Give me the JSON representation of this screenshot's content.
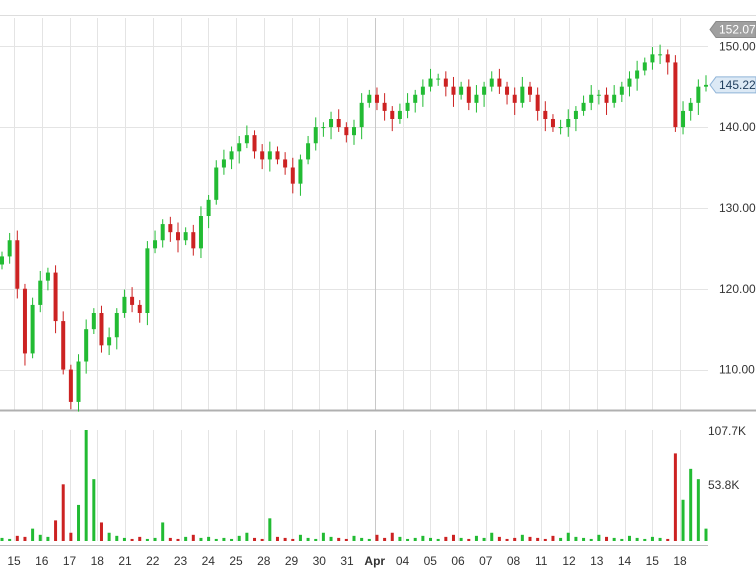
{
  "chart_data": [
    {
      "type": "candlestick",
      "title": "",
      "xlabel": "",
      "ylabel": "",
      "ylim": [
        105,
        153
      ],
      "y_ticks": [
        "150.00",
        "140.00",
        "130.00",
        "120.00",
        "110.00"
      ],
      "y_tick_values": [
        150,
        140,
        130,
        120,
        110
      ],
      "badges": [
        {
          "label": "152.07",
          "value": 152.07,
          "style": "gray"
        },
        {
          "label": "145.22",
          "value": 145.22,
          "style": "blue"
        }
      ],
      "x_labels": [
        "15",
        "16",
        "17",
        "18",
        "21",
        "22",
        "23",
        "24",
        "25",
        "28",
        "29",
        "30",
        "31",
        "Apr",
        "04",
        "05",
        "06",
        "07",
        "08",
        "11",
        "12",
        "13",
        "14",
        "15",
        "18"
      ],
      "closes": [
        124,
        126,
        120,
        112,
        118,
        121,
        122,
        116,
        110,
        106,
        111,
        115,
        117,
        113,
        114,
        117,
        119,
        118,
        117,
        125,
        126,
        128,
        127,
        126,
        127,
        125,
        129,
        131,
        135,
        136,
        137,
        138,
        139,
        137,
        136,
        137,
        136,
        135,
        133,
        136,
        138,
        140,
        140,
        141,
        140,
        139,
        140,
        143,
        144,
        143,
        142,
        141,
        142,
        143,
        144,
        145,
        146,
        146,
        145,
        144,
        145,
        143,
        144,
        145,
        146,
        145,
        144,
        143,
        145,
        144,
        142,
        141,
        140,
        140,
        141,
        142,
        143,
        144,
        144,
        143,
        144,
        145,
        146,
        147,
        148,
        149,
        149,
        148,
        140,
        142,
        143,
        145,
        145.22
      ],
      "volumes": [
        3,
        2,
        5,
        4,
        12,
        6,
        4,
        20,
        55,
        8,
        35,
        107.7,
        60,
        18,
        8,
        5,
        3,
        2,
        4,
        2,
        3,
        18,
        3,
        2,
        4,
        6,
        3,
        4,
        2,
        3,
        2,
        5,
        8,
        3,
        2,
        22,
        4,
        3,
        2,
        6,
        3,
        2,
        8,
        4,
        3,
        2,
        5,
        3,
        2,
        6,
        3,
        8,
        4,
        2,
        3,
        5,
        3,
        2,
        4,
        6,
        3,
        2,
        5,
        3,
        8,
        4,
        2,
        3,
        6,
        4,
        3,
        2,
        5,
        3,
        8,
        4,
        3,
        2,
        6,
        4,
        3,
        2,
        5,
        3,
        2,
        4,
        3,
        2,
        85,
        40,
        70,
        60,
        12
      ],
      "volume_ylim": [
        0,
        107.7
      ],
      "volume_ticks": [
        "107.7K",
        "53.8K"
      ]
    }
  ]
}
